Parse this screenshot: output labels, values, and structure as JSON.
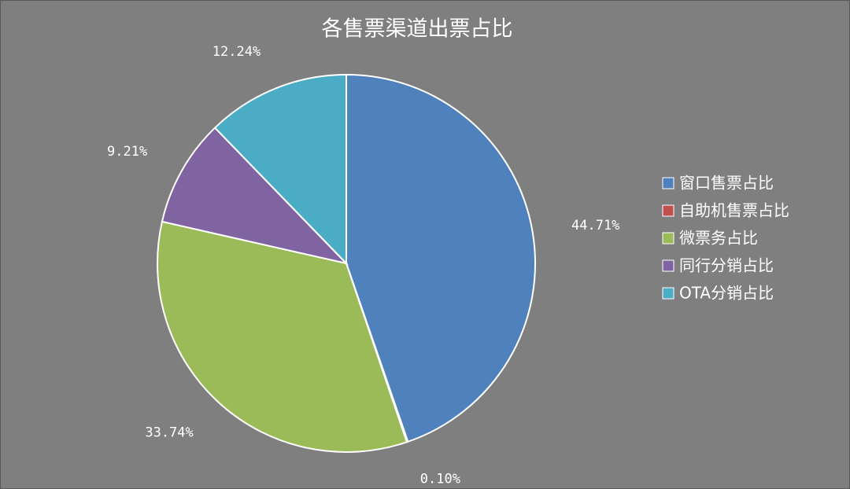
{
  "chart_data": {
    "type": "pie",
    "title": "各售票渠道出票占比",
    "categories": [
      "窗口售票占比",
      "自助机售票占比",
      "微票务占比",
      "同行分销占比",
      "OTA分销占比"
    ],
    "values": [
      44.71,
      0.1,
      33.74,
      9.21,
      12.24
    ],
    "value_labels": [
      "44.71%",
      "0.10%",
      "33.74%",
      "9.21%",
      "12.24%"
    ],
    "colors": [
      "#4f81bd",
      "#c0504d",
      "#9bbb59",
      "#8064a2",
      "#4bacc6"
    ],
    "legend": "right"
  }
}
